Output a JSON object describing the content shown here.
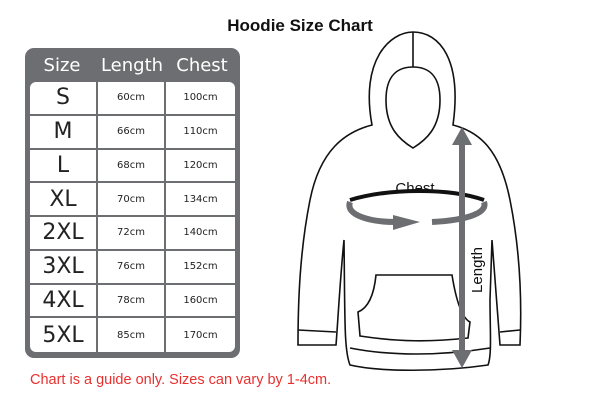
{
  "title": "Hoodie Size Chart",
  "table": {
    "headers": [
      "Size",
      "Length",
      "Chest"
    ],
    "rows": [
      [
        "S",
        "60cm",
        "100cm"
      ],
      [
        "M",
        "66cm",
        "110cm"
      ],
      [
        "L",
        "68cm",
        "120cm"
      ],
      [
        "XL",
        "70cm",
        "134cm"
      ],
      [
        "2XL",
        "72cm",
        "140cm"
      ],
      [
        "3XL",
        "76cm",
        "152cm"
      ],
      [
        "4XL",
        "78cm",
        "160cm"
      ],
      [
        "5XL",
        "85cm",
        "170cm"
      ]
    ]
  },
  "diagram": {
    "chest_label": "Chest",
    "length_label": "Length"
  },
  "note": "Chart is a guide only. Sizes can vary by 1-4cm.",
  "colors": {
    "table_frame": "#6d6e71",
    "arrow": "#6d6e71",
    "note": "#e8312f"
  }
}
